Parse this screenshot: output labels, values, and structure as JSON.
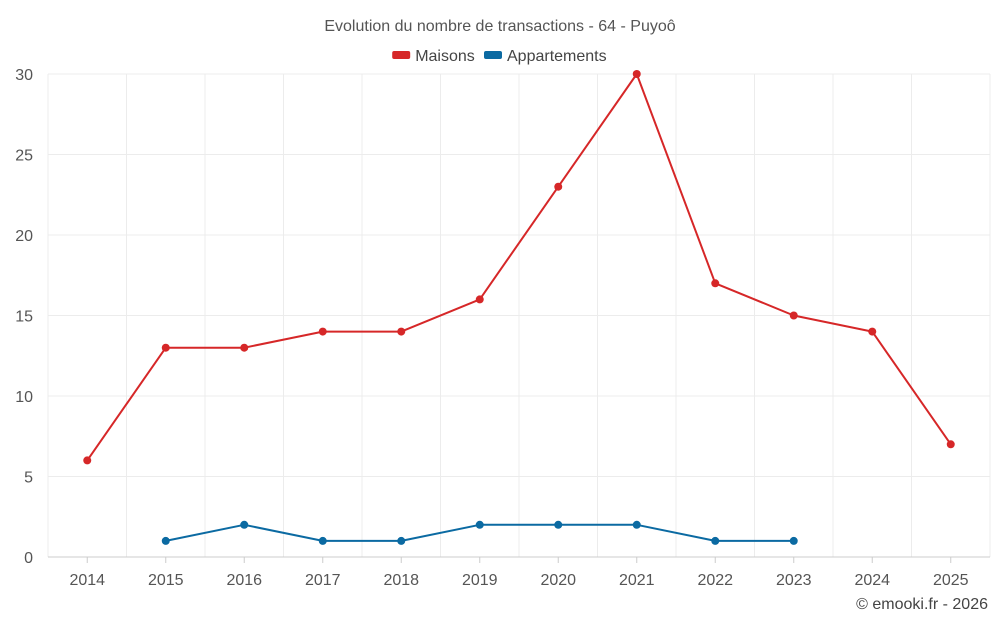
{
  "chart_data": {
    "type": "line",
    "title": "Evolution du nombre de transactions - 64 - Puyoô",
    "xlabel": "",
    "ylabel": "",
    "ylim": [
      0,
      30
    ],
    "yticks": [
      0,
      5,
      10,
      15,
      20,
      25,
      30
    ],
    "grid": true,
    "legend_position": "top-center",
    "categories": [
      "2014",
      "2015",
      "2016",
      "2017",
      "2018",
      "2019",
      "2020",
      "2021",
      "2022",
      "2023",
      "2024",
      "2025"
    ],
    "series": [
      {
        "name": "Maisons",
        "color": "#d62728",
        "values": [
          6,
          13,
          13,
          14,
          14,
          16,
          23,
          30,
          17,
          15,
          14,
          7
        ]
      },
      {
        "name": "Appartements",
        "color": "#0b6aa2",
        "values": [
          null,
          1,
          2,
          1,
          1,
          2,
          2,
          2,
          1,
          1,
          null,
          null
        ]
      }
    ],
    "credit": "© emooki.fr - 2026"
  }
}
